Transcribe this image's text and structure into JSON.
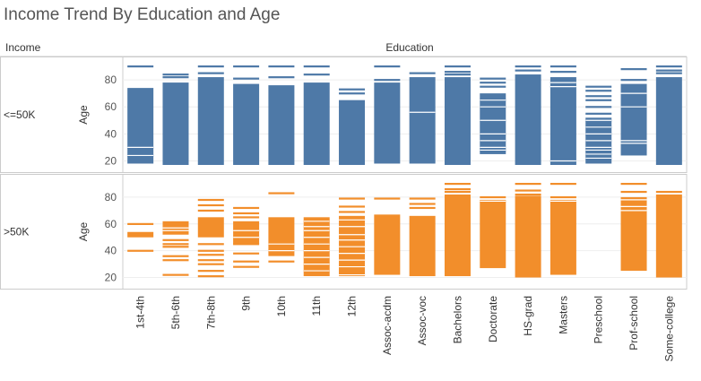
{
  "title": "Income Trend By Education and Age",
  "headers": {
    "row_field": "Income",
    "column_field": "Education"
  },
  "colors": {
    "<=50K": "#4e79a7",
    ">50K": "#f28e2b",
    "border": "#cccccc",
    "grid": "#eeeeee"
  },
  "chart_data": {
    "type": "bar",
    "title": "Income Trend By Education and Age",
    "xlabel": "Education",
    "ylabel": "Age",
    "categories": [
      "1st-4th",
      "5th-6th",
      "7th-8th",
      "9th",
      "10th",
      "11th",
      "12th",
      "Assoc-acdm",
      "Assoc-voc",
      "Bachelors",
      "Doctorate",
      "HS-grad",
      "Masters",
      "Preschool",
      "Prof-school",
      "Some-college"
    ],
    "yticks": [
      20,
      40,
      60,
      80
    ],
    "ylim": [
      15,
      92
    ],
    "series": [
      {
        "name": "<=50K",
        "panel_label": "<=50K",
        "solid": [
          [
            18,
            74
          ],
          [
            17,
            78
          ],
          [
            17,
            82
          ],
          [
            17,
            77
          ],
          [
            17,
            76
          ],
          [
            17,
            78
          ],
          [
            17,
            65
          ],
          [
            18,
            78
          ],
          [
            18,
            82
          ],
          [
            17,
            82
          ],
          [
            25,
            70
          ],
          [
            17,
            84
          ],
          [
            17,
            82
          ],
          [
            18,
            52
          ],
          [
            24,
            77
          ],
          [
            17,
            82
          ]
        ],
        "ticks": [
          [
            90,
            24,
            30
          ],
          [
            84,
            82
          ],
          [
            90,
            85
          ],
          [
            90,
            81
          ],
          [
            90,
            82
          ],
          [
            90,
            84
          ],
          [
            73,
            70
          ],
          [
            90,
            80
          ],
          [
            85,
            56
          ],
          [
            90,
            86,
            84
          ],
          [
            81,
            78,
            75,
            65,
            60,
            50,
            40,
            35,
            30,
            28
          ],
          [
            90,
            87
          ],
          [
            90,
            86,
            78,
            75,
            20
          ],
          [
            75,
            72,
            68,
            65,
            60,
            55,
            50,
            45,
            40,
            35,
            30,
            28,
            25,
            22
          ],
          [
            88,
            80,
            70,
            60,
            35,
            33
          ],
          [
            90,
            87,
            85
          ]
        ]
      },
      {
        "name": ">50K",
        "panel_label": ">50K",
        "solid": [
          [
            50,
            54
          ],
          [
            52,
            62
          ],
          [
            50,
            65
          ],
          [
            45,
            62
          ],
          [
            36,
            65
          ],
          [
            21,
            65
          ],
          [
            21,
            66
          ],
          [
            22,
            67
          ],
          [
            21,
            66
          ],
          [
            21,
            82
          ],
          [
            27,
            78
          ],
          [
            20,
            81
          ],
          [
            22,
            78
          ],
          [
            null,
            null
          ],
          [
            25,
            80
          ],
          [
            20,
            82
          ]
        ],
        "ticks": [
          [
            60,
            40
          ],
          [
            57,
            55,
            48,
            45,
            43,
            36,
            33,
            22
          ],
          [
            78,
            74,
            70,
            45,
            40,
            37,
            33,
            30,
            25,
            21
          ],
          [
            72,
            68,
            65,
            55,
            50,
            45,
            38,
            32,
            28
          ],
          [
            83,
            45,
            40,
            32
          ],
          [
            62,
            58,
            55,
            50,
            45,
            40,
            35,
            30,
            25
          ],
          [
            79,
            73,
            69,
            63,
            58,
            52,
            48,
            43,
            38,
            33,
            28,
            22
          ],
          [
            79
          ],
          [
            79,
            75,
            72
          ],
          [
            90,
            86,
            84
          ],
          [
            80,
            77
          ],
          [
            90,
            85,
            82
          ],
          [
            90,
            80,
            77
          ],
          [],
          [
            90,
            84,
            78,
            73,
            70
          ],
          [
            84
          ]
        ]
      }
    ]
  }
}
